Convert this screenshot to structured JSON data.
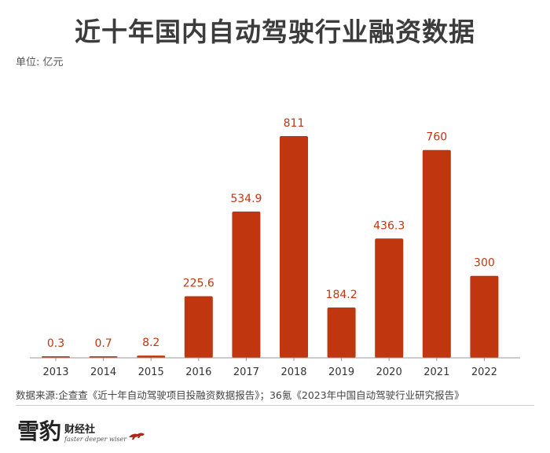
{
  "header": {
    "title": "近十年国内自动驾驶行业融资数据",
    "unit": "单位: 亿元"
  },
  "footer": {
    "source": "数据来源:企查查《近十年自动驾驶项目投融资数据报告》；36氪《2023年中国自动驾驶行业研究报告》"
  },
  "logo": {
    "mark": "雪豹",
    "name": "财经社",
    "slogan": "faster deeper wiser"
  },
  "colors": {
    "bar": "#c0360f",
    "label": "#c0360f",
    "axis": "#999999",
    "tick_text": "#333333"
  },
  "chart_data": {
    "type": "bar",
    "title": "近十年国内自动驾驶行业融资数据",
    "ylabel": "单位: 亿元",
    "categories": [
      "2013",
      "2014",
      "2015",
      "2016",
      "2017",
      "2018",
      "2019",
      "2020",
      "2021",
      "2022"
    ],
    "values": [
      0.3,
      0.7,
      8.2,
      225.6,
      534.9,
      811,
      184.2,
      436.3,
      760,
      300
    ],
    "value_labels": [
      "0.3",
      "0.7",
      "8.2",
      "225.6",
      "534.9",
      "811",
      "184.2",
      "436.3",
      "760",
      "300"
    ],
    "ylim": [
      0,
      811
    ],
    "grid": false,
    "legend": "none"
  }
}
